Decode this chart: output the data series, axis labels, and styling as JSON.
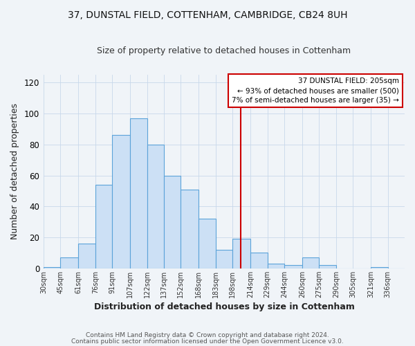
{
  "title1": "37, DUNSTAL FIELD, COTTENHAM, CAMBRIDGE, CB24 8UH",
  "title2": "Size of property relative to detached houses in Cottenham",
  "xlabel": "Distribution of detached houses by size in Cottenham",
  "ylabel": "Number of detached properties",
  "bar_left_edges": [
    30,
    45,
    61,
    76,
    91,
    107,
    122,
    137,
    152,
    168,
    183,
    198,
    214,
    229,
    244,
    260,
    275,
    290,
    305,
    321,
    336
  ],
  "bar_heights": [
    1,
    7,
    16,
    54,
    86,
    97,
    80,
    60,
    51,
    32,
    12,
    19,
    10,
    3,
    2,
    7,
    2,
    0,
    0,
    1,
    0
  ],
  "bar_color_fill": "#cce0f5",
  "bar_color_edge": "#5ba3d9",
  "grid_color": "#c8d8ea",
  "background_color": "#f0f4f8",
  "plot_bg_color": "#f0f4f8",
  "red_line_x": 205,
  "annotation_title": "37 DUNSTAL FIELD: 205sqm",
  "annotation_line1": "← 93% of detached houses are smaller (500)",
  "annotation_line2": "7% of semi-detached houses are larger (35) →",
  "annotation_box_color": "#cc0000",
  "annotation_text_color": "#000000",
  "red_line_color": "#cc0000",
  "footnote1": "Contains HM Land Registry data © Crown copyright and database right 2024.",
  "footnote2": "Contains public sector information licensed under the Open Government Licence v3.0.",
  "ylim": [
    0,
    125
  ],
  "yticks": [
    0,
    20,
    40,
    60,
    80,
    100,
    120
  ],
  "tick_labels": [
    "30sqm",
    "45sqm",
    "61sqm",
    "76sqm",
    "91sqm",
    "107sqm",
    "122sqm",
    "137sqm",
    "152sqm",
    "168sqm",
    "183sqm",
    "198sqm",
    "214sqm",
    "229sqm",
    "244sqm",
    "260sqm",
    "275sqm",
    "290sqm",
    "305sqm",
    "321sqm",
    "336sqm"
  ]
}
